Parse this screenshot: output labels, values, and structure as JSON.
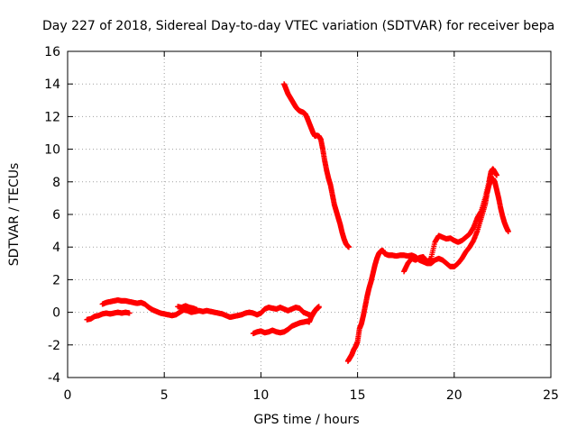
{
  "chart_data": {
    "type": "scatter",
    "title": "Day 227 of 2018, Sidereal Day-to-day VTEC variation (SDTVAR) for receiver bepa",
    "xlabel": "GPS time / hours",
    "ylabel": "SDTVAR / TECUs",
    "xlim": [
      0,
      25
    ],
    "ylim": [
      -4,
      16
    ],
    "xticks": [
      0,
      5,
      10,
      15,
      20,
      25
    ],
    "yticks": [
      -4,
      -2,
      0,
      2,
      4,
      6,
      8,
      10,
      12,
      14,
      16
    ],
    "xtick_labels": [
      "0",
      "5",
      "10",
      "15",
      "20",
      "25"
    ],
    "ytick_labels": [
      "-4",
      "-2",
      "0",
      "2",
      "4",
      "6",
      "8",
      "10",
      "12",
      "14",
      "16"
    ],
    "grid": true,
    "marker": "+",
    "color": "#ff0000",
    "series": [
      {
        "points": [
          [
            1.0,
            -0.45
          ],
          [
            1.2,
            -0.4
          ],
          [
            1.4,
            -0.25
          ],
          [
            1.6,
            -0.2
          ],
          [
            1.8,
            -0.1
          ],
          [
            2.0,
            -0.05
          ],
          [
            2.2,
            -0.1
          ],
          [
            2.4,
            -0.05
          ],
          [
            2.6,
            0.0
          ],
          [
            2.8,
            -0.05
          ],
          [
            3.0,
            0.0
          ],
          [
            3.2,
            -0.05
          ]
        ]
      },
      {
        "points": [
          [
            1.8,
            0.5
          ],
          [
            2.0,
            0.6
          ],
          [
            2.2,
            0.65
          ],
          [
            2.4,
            0.7
          ],
          [
            2.6,
            0.75
          ],
          [
            2.8,
            0.7
          ],
          [
            3.0,
            0.7
          ],
          [
            3.2,
            0.65
          ],
          [
            3.4,
            0.6
          ],
          [
            3.6,
            0.55
          ],
          [
            3.8,
            0.6
          ],
          [
            4.0,
            0.5
          ],
          [
            4.2,
            0.3
          ],
          [
            4.4,
            0.15
          ],
          [
            4.6,
            0.05
          ],
          [
            4.8,
            -0.05
          ],
          [
            5.0,
            -0.1
          ],
          [
            5.2,
            -0.15
          ],
          [
            5.4,
            -0.2
          ],
          [
            5.6,
            -0.15
          ],
          [
            5.8,
            0.0
          ],
          [
            6.0,
            0.15
          ],
          [
            6.2,
            0.1
          ],
          [
            6.4,
            0.0
          ],
          [
            6.6,
            0.05
          ],
          [
            6.8,
            0.1
          ],
          [
            7.0,
            0.05
          ],
          [
            7.2,
            0.1
          ],
          [
            7.4,
            0.05
          ],
          [
            7.6,
            0.0
          ],
          [
            7.8,
            -0.05
          ],
          [
            8.0,
            -0.1
          ],
          [
            8.2,
            -0.2
          ],
          [
            8.4,
            -0.3
          ],
          [
            8.6,
            -0.25
          ],
          [
            8.8,
            -0.2
          ],
          [
            9.0,
            -0.15
          ],
          [
            9.2,
            -0.05
          ],
          [
            9.4,
            0.0
          ],
          [
            9.6,
            -0.05
          ],
          [
            9.8,
            -0.15
          ],
          [
            10.0,
            -0.05
          ],
          [
            10.2,
            0.2
          ],
          [
            10.4,
            0.3
          ],
          [
            10.6,
            0.25
          ],
          [
            10.8,
            0.2
          ],
          [
            11.0,
            0.3
          ],
          [
            11.2,
            0.2
          ],
          [
            11.4,
            0.1
          ],
          [
            11.6,
            0.2
          ],
          [
            11.8,
            0.3
          ],
          [
            12.0,
            0.25
          ],
          [
            12.2,
            0.0
          ],
          [
            12.4,
            -0.1
          ],
          [
            12.6,
            -0.2
          ],
          [
            12.8,
            0.1
          ],
          [
            13.0,
            0.3
          ]
        ]
      },
      {
        "points": [
          [
            5.7,
            0.35
          ],
          [
            5.9,
            0.3
          ],
          [
            6.1,
            0.4
          ],
          [
            6.3,
            0.3
          ],
          [
            6.5,
            0.25
          ],
          [
            6.7,
            0.15
          ]
        ]
      },
      {
        "points": [
          [
            9.6,
            -1.3
          ],
          [
            9.8,
            -1.2
          ],
          [
            10.0,
            -1.15
          ],
          [
            10.2,
            -1.25
          ],
          [
            10.4,
            -1.2
          ],
          [
            10.6,
            -1.1
          ],
          [
            10.8,
            -1.2
          ],
          [
            11.0,
            -1.25
          ],
          [
            11.2,
            -1.2
          ],
          [
            11.4,
            -1.05
          ],
          [
            11.6,
            -0.85
          ],
          [
            11.8,
            -0.75
          ],
          [
            12.0,
            -0.65
          ],
          [
            12.2,
            -0.6
          ],
          [
            12.4,
            -0.55
          ],
          [
            12.5,
            -0.6
          ],
          [
            12.6,
            -0.3
          ],
          [
            12.7,
            -0.1
          ],
          [
            12.8,
            0.1
          ],
          [
            12.9,
            0.25
          ],
          [
            13.0,
            0.35
          ]
        ]
      },
      {
        "points": [
          [
            11.2,
            14.0
          ],
          [
            11.3,
            13.7
          ],
          [
            11.4,
            13.4
          ],
          [
            11.5,
            13.2
          ],
          [
            11.6,
            13.0
          ],
          [
            11.7,
            12.8
          ],
          [
            11.8,
            12.6
          ],
          [
            11.9,
            12.45
          ],
          [
            12.0,
            12.35
          ],
          [
            12.1,
            12.3
          ],
          [
            12.2,
            12.25
          ],
          [
            12.3,
            12.15
          ],
          [
            12.4,
            11.9
          ],
          [
            12.5,
            11.6
          ],
          [
            12.6,
            11.3
          ],
          [
            12.7,
            11.0
          ],
          [
            12.8,
            10.8
          ],
          [
            12.9,
            10.85
          ],
          [
            13.0,
            10.8
          ],
          [
            13.1,
            10.6
          ],
          [
            13.2,
            10.0
          ],
          [
            13.3,
            9.3
          ],
          [
            13.4,
            8.7
          ],
          [
            13.5,
            8.2
          ],
          [
            13.6,
            7.8
          ],
          [
            13.7,
            7.2
          ],
          [
            13.8,
            6.6
          ],
          [
            13.9,
            6.2
          ],
          [
            14.0,
            5.8
          ],
          [
            14.1,
            5.4
          ],
          [
            14.2,
            4.9
          ],
          [
            14.3,
            4.5
          ],
          [
            14.4,
            4.2
          ],
          [
            14.5,
            4.05
          ],
          [
            14.55,
            4.0
          ]
        ]
      },
      {
        "points": [
          [
            14.5,
            -3.0
          ],
          [
            14.6,
            -2.8
          ],
          [
            14.7,
            -2.6
          ],
          [
            14.8,
            -2.3
          ],
          [
            14.9,
            -2.1
          ],
          [
            15.0,
            -1.8
          ],
          [
            15.1,
            -1.0
          ],
          [
            15.2,
            -0.7
          ],
          [
            15.3,
            -0.2
          ],
          [
            15.4,
            0.4
          ],
          [
            15.5,
            1.0
          ],
          [
            15.6,
            1.5
          ],
          [
            15.7,
            1.9
          ],
          [
            15.8,
            2.4
          ],
          [
            15.9,
            2.9
          ],
          [
            16.0,
            3.3
          ],
          [
            16.1,
            3.6
          ],
          [
            16.2,
            3.75
          ],
          [
            16.3,
            3.8
          ],
          [
            16.4,
            3.6
          ],
          [
            16.5,
            3.55
          ],
          [
            16.6,
            3.5
          ],
          [
            16.8,
            3.5
          ],
          [
            17.0,
            3.45
          ],
          [
            17.2,
            3.5
          ],
          [
            17.4,
            3.5
          ],
          [
            17.6,
            3.45
          ],
          [
            17.8,
            3.5
          ],
          [
            18.0,
            3.4
          ],
          [
            18.2,
            3.2
          ],
          [
            18.4,
            3.1
          ],
          [
            18.6,
            3.0
          ],
          [
            18.8,
            3.0
          ],
          [
            19.0,
            3.2
          ],
          [
            19.2,
            3.3
          ],
          [
            19.4,
            3.2
          ],
          [
            19.6,
            3.0
          ],
          [
            19.8,
            2.8
          ],
          [
            20.0,
            2.8
          ],
          [
            20.2,
            3.0
          ],
          [
            20.4,
            3.3
          ],
          [
            20.6,
            3.7
          ],
          [
            20.8,
            4.0
          ],
          [
            21.0,
            4.4
          ],
          [
            21.2,
            5.0
          ],
          [
            21.4,
            5.8
          ],
          [
            21.6,
            6.6
          ],
          [
            21.7,
            7.3
          ],
          [
            21.8,
            7.8
          ],
          [
            21.9,
            8.1
          ],
          [
            22.0,
            8.2
          ],
          [
            22.1,
            8.0
          ],
          [
            22.2,
            7.5
          ],
          [
            22.3,
            7.0
          ],
          [
            22.4,
            6.4
          ],
          [
            22.5,
            5.9
          ],
          [
            22.6,
            5.5
          ],
          [
            22.7,
            5.2
          ],
          [
            22.8,
            4.95
          ]
        ]
      },
      {
        "points": [
          [
            17.4,
            2.5
          ],
          [
            17.6,
            3.0
          ],
          [
            17.8,
            3.3
          ],
          [
            18.0,
            3.2
          ],
          [
            18.2,
            3.35
          ],
          [
            18.4,
            3.4
          ],
          [
            18.6,
            3.1
          ],
          [
            18.8,
            3.3
          ],
          [
            19.0,
            4.3
          ],
          [
            19.2,
            4.7
          ],
          [
            19.4,
            4.6
          ],
          [
            19.6,
            4.5
          ],
          [
            19.8,
            4.55
          ],
          [
            20.0,
            4.4
          ],
          [
            20.2,
            4.3
          ],
          [
            20.4,
            4.4
          ],
          [
            20.6,
            4.6
          ],
          [
            20.8,
            4.8
          ],
          [
            21.0,
            5.2
          ],
          [
            21.2,
            5.8
          ],
          [
            21.4,
            6.2
          ],
          [
            21.6,
            7.0
          ],
          [
            21.8,
            8.0
          ],
          [
            21.9,
            8.6
          ],
          [
            22.0,
            8.8
          ],
          [
            22.1,
            8.6
          ],
          [
            22.2,
            8.4
          ]
        ]
      }
    ]
  }
}
